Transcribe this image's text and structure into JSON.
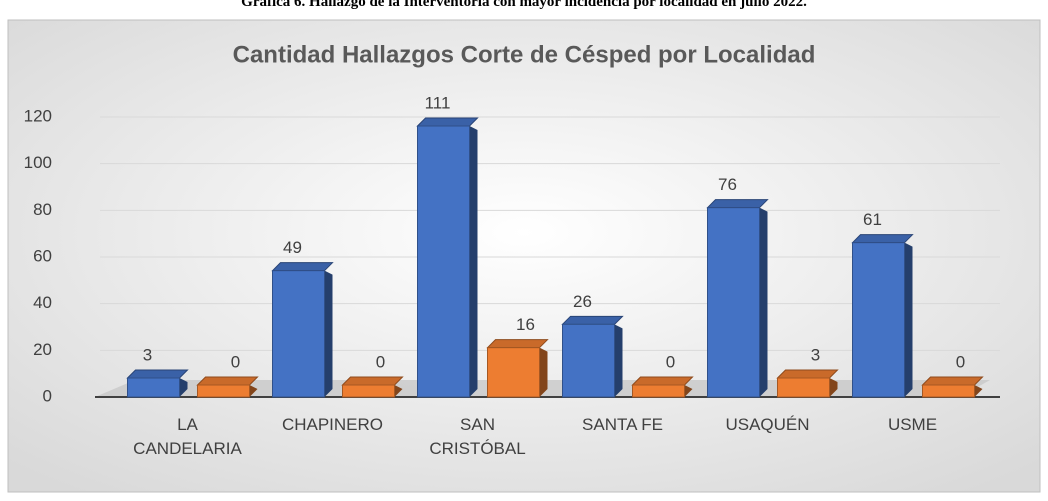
{
  "caption": "Gráfica 6. Hallazgo de la Interventoría con mayor incidencia por localidad en julio 2022.",
  "chart_data": {
    "type": "bar3d",
    "title": "Cantidad Hallazgos Corte de Césped por Localidad",
    "categories": [
      "LA CANDELARIA",
      "CHAPINERO",
      "SAN CRISTÓBAL",
      "SANTA FE",
      "USAQUÉN",
      "USME"
    ],
    "series": [
      {
        "color": "#4472c4",
        "values": [
          3,
          49,
          111,
          26,
          76,
          61
        ]
      },
      {
        "color": "#ed7d31",
        "values": [
          0,
          0,
          16,
          0,
          3,
          0
        ]
      }
    ],
    "ylim": [
      0,
      120
    ],
    "yticks": [
      0,
      20,
      40,
      60,
      80,
      100,
      120
    ],
    "grid": true
  }
}
